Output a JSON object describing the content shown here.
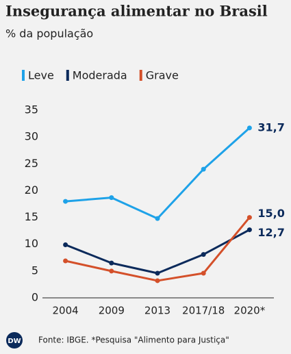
{
  "chart_data": {
    "type": "line",
    "title": "Insegurança alimentar no Brasil",
    "subtitle": "% da população",
    "categories": [
      "2004",
      "2009",
      "2013",
      "2017/18",
      "2020*"
    ],
    "series": [
      {
        "name": "Leve",
        "color": "#1ea2e8",
        "values": [
          18.0,
          18.7,
          14.8,
          24.0,
          31.7
        ],
        "value_labels": [
          null,
          null,
          null,
          null,
          "31,7"
        ]
      },
      {
        "name": "Moderada",
        "color": "#0b2a5b",
        "values": [
          9.9,
          6.5,
          4.6,
          8.1,
          12.7
        ],
        "value_labels": [
          null,
          null,
          null,
          null,
          "12,7"
        ]
      },
      {
        "name": "Grave",
        "color": "#d4502a",
        "values": [
          6.9,
          5.0,
          3.2,
          4.6,
          15.0
        ],
        "value_labels": [
          null,
          null,
          null,
          null,
          "15,0"
        ]
      }
    ],
    "ylim": [
      0,
      35
    ],
    "yticks": [
      0,
      5,
      10,
      15,
      20,
      25,
      30,
      35
    ],
    "grid": false,
    "legend": "top-left",
    "logo": "DW",
    "source": "Fonte: IBGE. *Pesquisa \"Alimento para Justiça\""
  }
}
